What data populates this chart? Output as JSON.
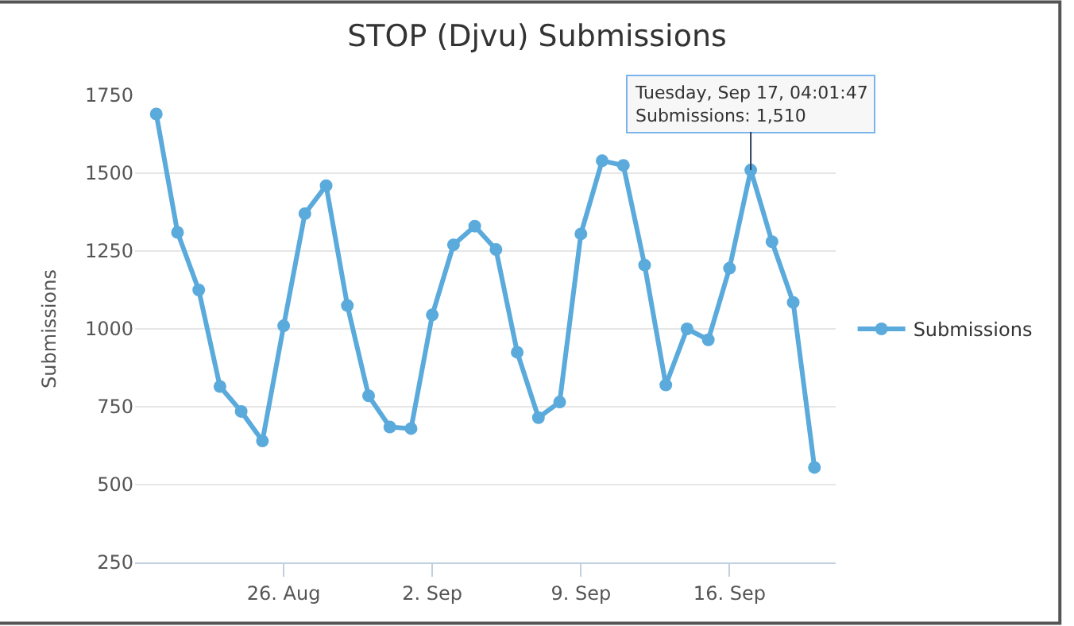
{
  "chart_data": {
    "type": "line",
    "title": "STOP (Djvu) Submissions",
    "ylabel": "Submissions",
    "x": [
      "--08-20",
      "--08-21",
      "--08-22",
      "--08-23",
      "--08-24",
      "--08-25",
      "--08-26",
      "--08-27",
      "--08-28",
      "--08-29",
      "--08-30",
      "--08-31",
      "--09-01",
      "--09-02",
      "--09-03",
      "--09-04",
      "--09-05",
      "--09-06",
      "--09-07",
      "--09-08",
      "--09-09",
      "--09-10",
      "--09-11",
      "--09-12",
      "--09-13",
      "--09-14",
      "--09-15",
      "--09-16",
      "--09-17",
      "--09-18",
      "--09-19",
      "--09-20"
    ],
    "series": [
      {
        "name": "Submissions",
        "color": "#5aaadc",
        "values": [
          1690,
          1310,
          1125,
          815,
          735,
          640,
          1010,
          1370,
          1460,
          1075,
          785,
          685,
          680,
          1045,
          1270,
          1330,
          1255,
          925,
          715,
          765,
          1305,
          1540,
          1525,
          1205,
          820,
          1000,
          965,
          1195,
          1510,
          1280,
          1085,
          555
        ]
      }
    ],
    "xlim": [
      "--08-19",
      "--09-21"
    ],
    "xticks": [
      {
        "value": "--08-26",
        "label": "26. Aug"
      },
      {
        "value": "--09-02",
        "label": "2. Sep"
      },
      {
        "value": "--09-09",
        "label": "9. Sep"
      },
      {
        "value": "--09-16",
        "label": "16. Sep"
      }
    ],
    "ylim": [
      250,
      1750
    ],
    "yticks": [
      250,
      500,
      750,
      1000,
      1250,
      1500,
      1750
    ],
    "grid": "y",
    "legend": "right",
    "marker": "circle",
    "line_style": "solid",
    "annotations": [
      {
        "text": "Tuesday, Sep 17, 04:01:47\nSubmissions: 1,510",
        "x": "--09-17",
        "y": 1510
      }
    ]
  }
}
